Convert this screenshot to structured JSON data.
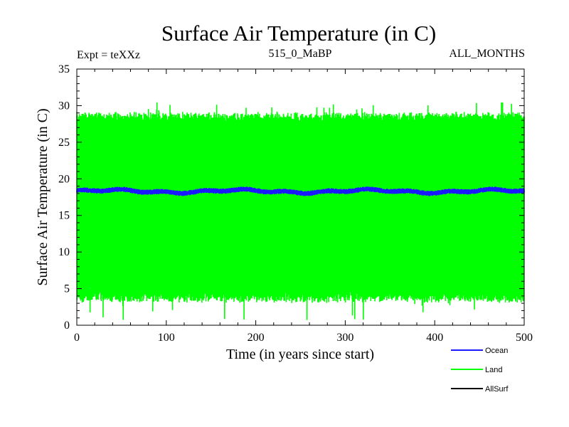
{
  "chart_data": {
    "type": "line",
    "title": "Surface Air Temperature (in C)",
    "subtitle_left": "Expt = teXXz",
    "subtitle_center": "515_0_MaBP",
    "subtitle_right": "ALL_MONTHS",
    "xlabel": "Time (in years since start)",
    "ylabel": "Surface Air Temperature (in C)",
    "xlim": [
      0,
      500
    ],
    "ylim": [
      0,
      35
    ],
    "x_ticks": [
      0,
      100,
      200,
      300,
      400,
      500
    ],
    "y_ticks": [
      0,
      5,
      10,
      15,
      20,
      25,
      30,
      35
    ],
    "x_tick_labels": [
      "0",
      "100",
      "200",
      "300",
      "400",
      "500"
    ],
    "y_tick_labels": [
      "0",
      "5",
      "10",
      "15",
      "20",
      "25",
      "30",
      "35"
    ],
    "series": [
      {
        "name": "Ocean",
        "color": "#1a1aff",
        "description_of_values": "monthly values oscillating in a narrow band around 18.3 C",
        "mean": 18.3,
        "band_low": 17.9,
        "band_high": 18.8
      },
      {
        "name": "Land",
        "color": "#00ff00",
        "description_of_values": "monthly values oscillating in a dense band between about 3 and 29 C",
        "mean": 16.0,
        "band_low": 3.5,
        "band_high": 28.8,
        "extreme_low": 0.6,
        "extreme_high": 30.5
      },
      {
        "name": "AllSurf",
        "color": "#000000"
      }
    ],
    "legend": [
      "Ocean",
      "Land",
      "AllSurf"
    ],
    "legend_position": "bottom-right"
  }
}
